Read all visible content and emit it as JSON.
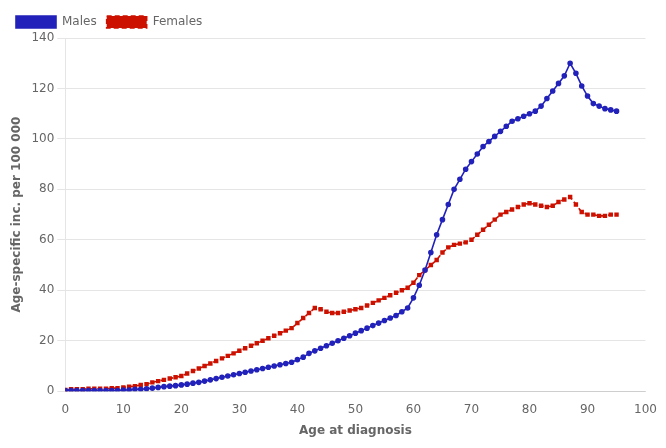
{
  "chart_data": {
    "type": "line",
    "xlabel": "Age at diagnosis",
    "ylabel": "Age-specific inc. per 100 000",
    "x": [
      0,
      1,
      2,
      3,
      4,
      5,
      6,
      7,
      8,
      9,
      10,
      11,
      12,
      13,
      14,
      15,
      16,
      17,
      18,
      19,
      20,
      21,
      22,
      23,
      24,
      25,
      26,
      27,
      28,
      29,
      30,
      31,
      32,
      33,
      34,
      35,
      36,
      37,
      38,
      39,
      40,
      41,
      42,
      43,
      44,
      45,
      46,
      47,
      48,
      49,
      50,
      51,
      52,
      53,
      54,
      55,
      56,
      57,
      58,
      59,
      60,
      61,
      62,
      63,
      64,
      65,
      66,
      67,
      68,
      69,
      70,
      71,
      72,
      73,
      74,
      75,
      76,
      77,
      78,
      79,
      80,
      81,
      82,
      83,
      84,
      85,
      86,
      87,
      88,
      89,
      90,
      91,
      92,
      93,
      94,
      95
    ],
    "series": [
      {
        "name": "Males",
        "color": "#2222bb",
        "marker": "circle",
        "line_style": "solid",
        "values": [
          0.3,
          0.3,
          0.3,
          0.3,
          0.3,
          0.3,
          0.3,
          0.3,
          0.3,
          0.3,
          0.5,
          0.5,
          0.8,
          0.8,
          1.0,
          1.2,
          1.5,
          1.8,
          2.0,
          2.2,
          2.5,
          2.8,
          3.2,
          3.5,
          4.0,
          4.5,
          5.0,
          5.5,
          6.0,
          6.5,
          7.0,
          7.5,
          8.0,
          8.5,
          9.0,
          9.5,
          10.0,
          10.5,
          11.0,
          11.5,
          12.5,
          13.5,
          15.0,
          16.0,
          17.0,
          18.0,
          19.0,
          20.0,
          21.0,
          22.0,
          23.0,
          24.0,
          25.0,
          26.0,
          27.0,
          28.0,
          29.0,
          30.0,
          31.5,
          33.0,
          37.0,
          42.0,
          48.0,
          55.0,
          62.0,
          68.0,
          74.0,
          80.0,
          84.0,
          88.0,
          91.0,
          94.0,
          97.0,
          99.0,
          101.0,
          103.0,
          105.0,
          107.0,
          108.0,
          109.0,
          110.0,
          111.0,
          113.0,
          116.0,
          119.0,
          122.0,
          125.0,
          130.0,
          126.0,
          121.0,
          117.0,
          114.0,
          113.0,
          112.0,
          111.5,
          111.0
        ]
      },
      {
        "name": "Females",
        "color": "#cc1100",
        "marker": "square",
        "line_style": "dashed",
        "values": [
          0.5,
          0.8,
          0.8,
          0.8,
          1.0,
          1.0,
          1.0,
          1.0,
          1.2,
          1.2,
          1.5,
          1.8,
          2.0,
          2.5,
          2.8,
          3.5,
          4.0,
          4.5,
          5.0,
          5.5,
          6.0,
          7.0,
          8.0,
          9.0,
          10.0,
          11.0,
          12.0,
          13.0,
          14.0,
          15.0,
          16.0,
          17.0,
          18.0,
          19.0,
          20.0,
          21.0,
          22.0,
          23.0,
          24.0,
          25.0,
          27.0,
          29.0,
          31.0,
          33.0,
          32.5,
          31.5,
          31.0,
          31.0,
          31.5,
          32.0,
          32.5,
          33.0,
          34.0,
          35.0,
          36.0,
          37.0,
          38.0,
          39.0,
          40.0,
          41.0,
          43.0,
          46.0,
          48.0,
          50.0,
          52.0,
          55.0,
          57.0,
          58.0,
          58.5,
          59.0,
          60.0,
          62.0,
          64.0,
          66.0,
          68.0,
          70.0,
          71.0,
          72.0,
          73.0,
          74.0,
          74.5,
          74.0,
          73.5,
          73.0,
          73.5,
          75.0,
          76.0,
          77.0,
          74.0,
          71.0,
          70.0,
          70.0,
          69.5,
          69.5,
          70.0,
          70.0
        ]
      }
    ],
    "xlim": [
      0,
      100
    ],
    "xticks": [
      0,
      10,
      20,
      30,
      40,
      50,
      60,
      70,
      80,
      90,
      100
    ],
    "ylim": [
      0,
      140
    ],
    "yticks": [
      0,
      20,
      40,
      60,
      80,
      100,
      120,
      140
    ],
    "grid": "y",
    "legend": "upper left"
  }
}
